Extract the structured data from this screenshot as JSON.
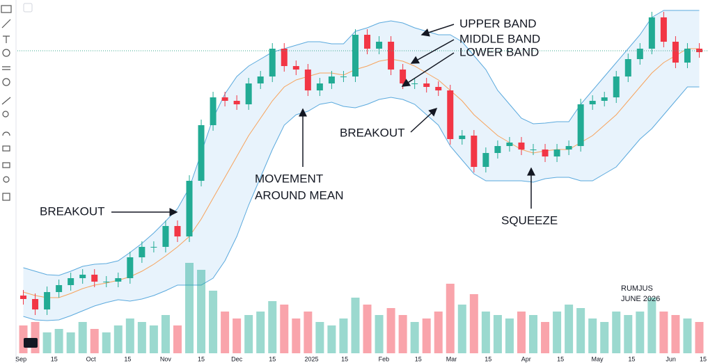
{
  "chart_data": {
    "type": "candlestick",
    "xlim": [
      0,
      58
    ],
    "xticks": [
      {
        "value": 0.3,
        "label": "Sep"
      },
      {
        "value": 3.1,
        "label": "15"
      },
      {
        "value": 6.2,
        "label": "Oct"
      },
      {
        "value": 9.3,
        "label": "15"
      },
      {
        "value": 12.5,
        "label": "Nov"
      },
      {
        "value": 15.5,
        "label": "15"
      },
      {
        "value": 18.5,
        "label": "Dec"
      },
      {
        "value": 21.5,
        "label": "15"
      },
      {
        "value": 24.8,
        "label": "2025"
      },
      {
        "value": 27.6,
        "label": "15"
      },
      {
        "value": 30.9,
        "label": "Feb"
      },
      {
        "value": 33.8,
        "label": "15"
      },
      {
        "value": 36.6,
        "label": "Mar"
      },
      {
        "value": 39.7,
        "label": "15"
      },
      {
        "value": 42.9,
        "label": "Apr"
      },
      {
        "value": 45.8,
        "label": "15"
      },
      {
        "value": 48.9,
        "label": "May"
      },
      {
        "value": 51.8,
        "label": "15"
      },
      {
        "value": 55.1,
        "label": "Jun"
      },
      {
        "value": 58,
        "label": "15"
      }
    ],
    "ylim": [
      0,
      500
    ],
    "up_color": "#22ab94",
    "down_color": "#f23645",
    "open": [
      75,
      70,
      55,
      80,
      90,
      100,
      105,
      95,
      95,
      100,
      130,
      145,
      145,
      175,
      160,
      240,
      320,
      360,
      355,
      350,
      380,
      390,
      430,
      405,
      400,
      370,
      380,
      390,
      390,
      450,
      430,
      440,
      400,
      380,
      380,
      375,
      370,
      300,
      305,
      260,
      280,
      290,
      295,
      285,
      285,
      275,
      285,
      290,
      350,
      355,
      360,
      390,
      415,
      430,
      475,
      440,
      410,
      430
    ],
    "high": [
      83,
      78,
      88,
      98,
      108,
      113,
      113,
      103,
      108,
      138,
      153,
      153,
      183,
      183,
      248,
      328,
      368,
      368,
      363,
      388,
      398,
      438,
      438,
      413,
      408,
      388,
      398,
      398,
      458,
      458,
      448,
      448,
      408,
      388,
      388,
      383,
      378,
      313,
      313,
      288,
      298,
      303,
      303,
      293,
      293,
      293,
      298,
      358,
      363,
      368,
      398,
      423,
      438,
      483,
      483,
      448,
      438,
      438
    ],
    "low": [
      62,
      47,
      47,
      72,
      82,
      92,
      87,
      87,
      87,
      92,
      122,
      137,
      137,
      152,
      152,
      232,
      312,
      347,
      342,
      342,
      372,
      382,
      397,
      392,
      362,
      362,
      372,
      382,
      382,
      422,
      422,
      392,
      372,
      372,
      367,
      362,
      292,
      292,
      252,
      252,
      272,
      282,
      277,
      277,
      267,
      267,
      277,
      282,
      342,
      347,
      352,
      382,
      407,
      422,
      432,
      402,
      402,
      417
    ],
    "close": [
      70,
      55,
      80,
      90,
      100,
      105,
      95,
      95,
      100,
      130,
      145,
      145,
      175,
      160,
      240,
      320,
      360,
      355,
      350,
      380,
      390,
      430,
      405,
      400,
      370,
      380,
      390,
      390,
      450,
      430,
      440,
      400,
      380,
      380,
      375,
      370,
      300,
      305,
      260,
      280,
      290,
      295,
      285,
      285,
      275,
      285,
      290,
      350,
      355,
      360,
      390,
      415,
      430,
      475,
      440,
      410,
      430,
      425
    ],
    "bands": {
      "upper_color": "#5aa9dd",
      "middle_color": "#f7a35c",
      "fill_color": "#e8f3fc",
      "upper": [
        115,
        110,
        105,
        104,
        110,
        117,
        120,
        121,
        125,
        137,
        150,
        165,
        182,
        200,
        230,
        280,
        330,
        365,
        390,
        405,
        415,
        425,
        430,
        435,
        440,
        440,
        437,
        437,
        455,
        460,
        467,
        470,
        467,
        460,
        455,
        450,
        450,
        440,
        420,
        400,
        370,
        350,
        330,
        322,
        323,
        325,
        325,
        350,
        370,
        390,
        410,
        430,
        450,
        475,
        485,
        485,
        485,
        485
      ],
      "middle": [
        80,
        75,
        72,
        72,
        78,
        85,
        90,
        93,
        97,
        102,
        110,
        120,
        132,
        145,
        160,
        185,
        215,
        245,
        275,
        305,
        330,
        355,
        375,
        385,
        390,
        395,
        395,
        392,
        400,
        405,
        412,
        415,
        412,
        405,
        395,
        385,
        370,
        355,
        335,
        320,
        305,
        295,
        285,
        280,
        283,
        285,
        285,
        295,
        305,
        320,
        335,
        355,
        375,
        395,
        410,
        420,
        430,
        430
      ],
      "lower": [
        45,
        40,
        39,
        40,
        46,
        53,
        60,
        65,
        69,
        67,
        70,
        75,
        82,
        90,
        90,
        90,
        100,
        125,
        160,
        205,
        245,
        285,
        320,
        335,
        340,
        350,
        353,
        347,
        345,
        350,
        357,
        360,
        357,
        350,
        335,
        320,
        290,
        270,
        250,
        240,
        240,
        240,
        240,
        238,
        243,
        245,
        245,
        240,
        240,
        250,
        260,
        280,
        300,
        315,
        335,
        355,
        375,
        375
      ]
    },
    "volume": {
      "ylim": [
        0,
        140
      ],
      "values": [
        40,
        45,
        30,
        35,
        30,
        45,
        35,
        30,
        40,
        50,
        45,
        40,
        55,
        40,
        130,
        120,
        90,
        60,
        50,
        55,
        60,
        75,
        70,
        50,
        60,
        45,
        40,
        50,
        80,
        70,
        55,
        65,
        55,
        45,
        50,
        60,
        100,
        70,
        85,
        60,
        55,
        50,
        60,
        55,
        45,
        60,
        70,
        65,
        50,
        45,
        60,
        55,
        60,
        80,
        60,
        55,
        50,
        45
      ]
    },
    "annotations": [
      "UPPER BAND",
      "MIDDLE BAND",
      "LOWER BAND",
      "BREAKOUT",
      "MOVEMENT",
      "AROUND MEAN",
      "BREAKOUT",
      "SQUEEZE",
      "RUMJUS",
      "JUNE 2026"
    ]
  }
}
